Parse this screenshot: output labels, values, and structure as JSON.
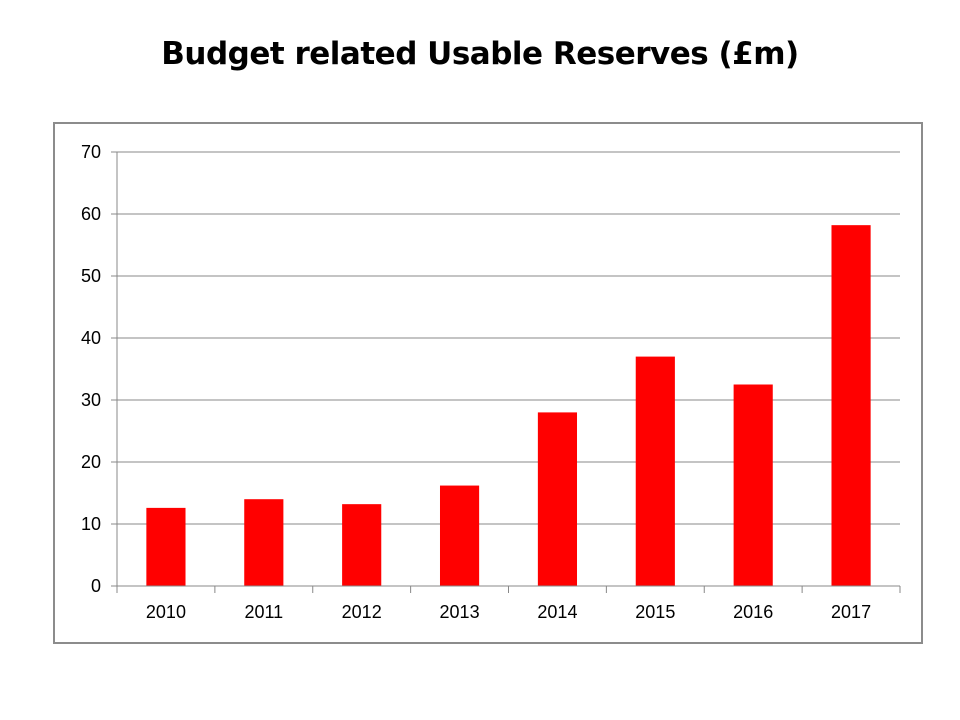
{
  "chart_data": {
    "type": "bar",
    "title": "Budget related Usable Reserves (£m)",
    "xlabel": "",
    "ylabel": "",
    "categories": [
      "2010",
      "2011",
      "2012",
      "2013",
      "2014",
      "2015",
      "2016",
      "2017"
    ],
    "values": [
      12.6,
      14.0,
      13.2,
      16.2,
      28.0,
      37.0,
      32.5,
      58.2
    ],
    "ylim": [
      0,
      70
    ],
    "yticks": [
      "0",
      "10",
      "20",
      "30",
      "40",
      "50",
      "60",
      "70"
    ],
    "grid": true,
    "legend": "none",
    "bar_color": "#ff0000",
    "gridline_color": "#888888",
    "axis_color": "#888888"
  }
}
